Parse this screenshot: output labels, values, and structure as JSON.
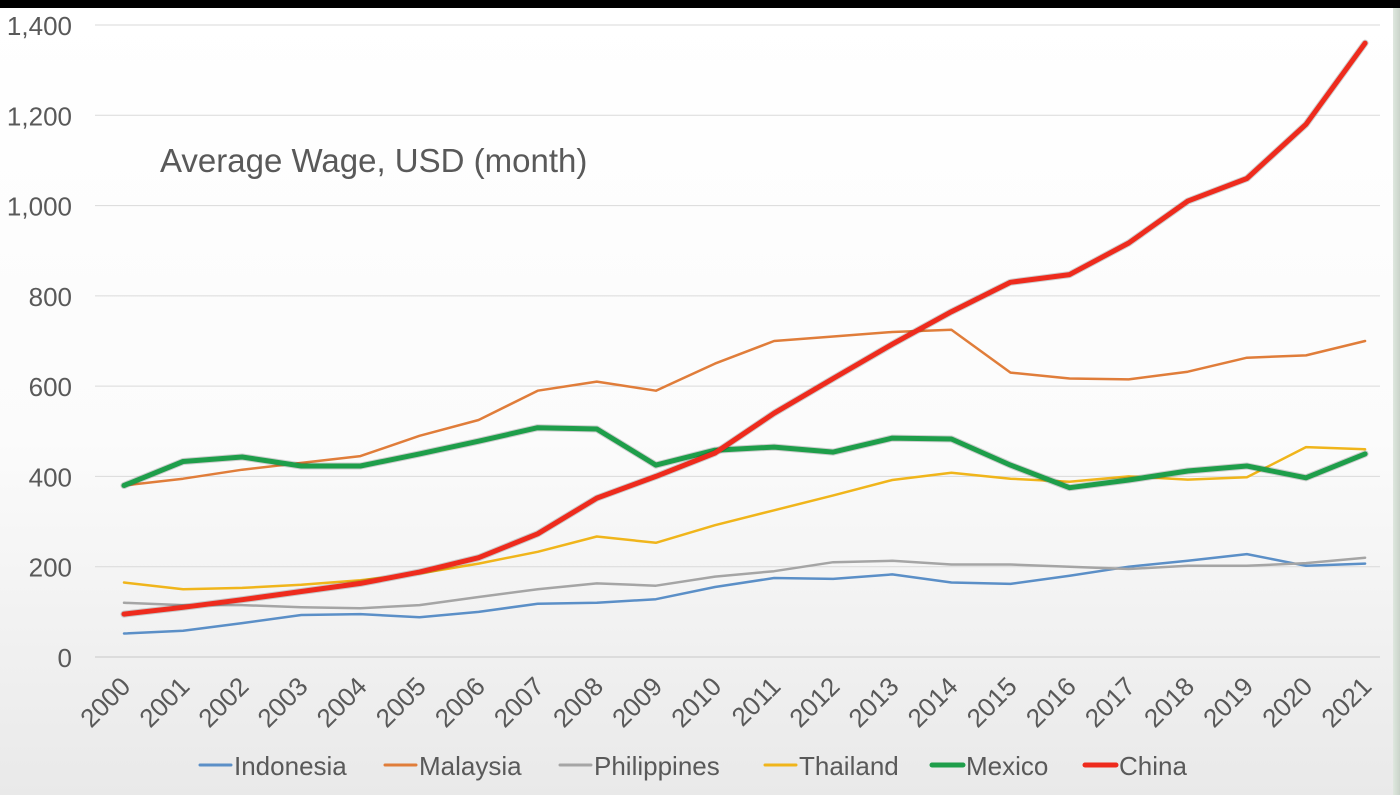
{
  "chart_data": {
    "type": "line",
    "title": "Average Wage, USD (month)",
    "xlabel": "",
    "ylabel": "",
    "ylim": [
      0,
      1400
    ],
    "yticks": [
      "0",
      "200",
      "400",
      "600",
      "800",
      "1,000",
      "1,200",
      "1,400"
    ],
    "ytick_values": [
      0,
      200,
      400,
      600,
      800,
      1000,
      1200,
      1400
    ],
    "categories": [
      "2000",
      "2001",
      "2002",
      "2003",
      "2004",
      "2005",
      "2006",
      "2007",
      "2008",
      "2009",
      "2010",
      "2011",
      "2012",
      "2013",
      "2014",
      "2015",
      "2016",
      "2017",
      "2018",
      "2019",
      "2020",
      "2021"
    ],
    "grid": true,
    "legend_position": "bottom",
    "series": [
      {
        "name": "Indonesia",
        "color": "#5b8fc7",
        "values": [
          52,
          58,
          75,
          93,
          95,
          88,
          100,
          118,
          120,
          128,
          155,
          175,
          173,
          183,
          165,
          162,
          180,
          200,
          213,
          228,
          202,
          207
        ]
      },
      {
        "name": "Malaysia",
        "color": "#e07d3a",
        "values": [
          380,
          395,
          415,
          430,
          445,
          490,
          525,
          590,
          610,
          590,
          650,
          700,
          710,
          720,
          725,
          630,
          617,
          615,
          632,
          663,
          668,
          700
        ]
      },
      {
        "name": "Philippines",
        "color": "#a5a5a5",
        "values": [
          120,
          115,
          115,
          110,
          108,
          115,
          133,
          150,
          163,
          158,
          178,
          190,
          210,
          213,
          205,
          205,
          200,
          195,
          202,
          202,
          208,
          220
        ]
      },
      {
        "name": "Thailand",
        "color": "#f0b51b",
        "values": [
          165,
          150,
          153,
          160,
          170,
          185,
          207,
          233,
          267,
          253,
          292,
          325,
          358,
          392,
          408,
          395,
          388,
          400,
          393,
          398,
          465,
          460
        ]
      },
      {
        "name": "Mexico",
        "color": "#1e9e4a",
        "values": [
          380,
          433,
          443,
          423,
          423,
          450,
          478,
          508,
          505,
          425,
          458,
          465,
          454,
          485,
          483,
          425,
          375,
          392,
          412,
          423,
          397,
          450
        ]
      },
      {
        "name": "China",
        "color": "#ee2b1d",
        "values": [
          95,
          110,
          127,
          145,
          163,
          188,
          220,
          273,
          352,
          400,
          452,
          540,
          617,
          693,
          765,
          830,
          847,
          917,
          1010,
          1060,
          1180,
          1360
        ]
      }
    ]
  }
}
